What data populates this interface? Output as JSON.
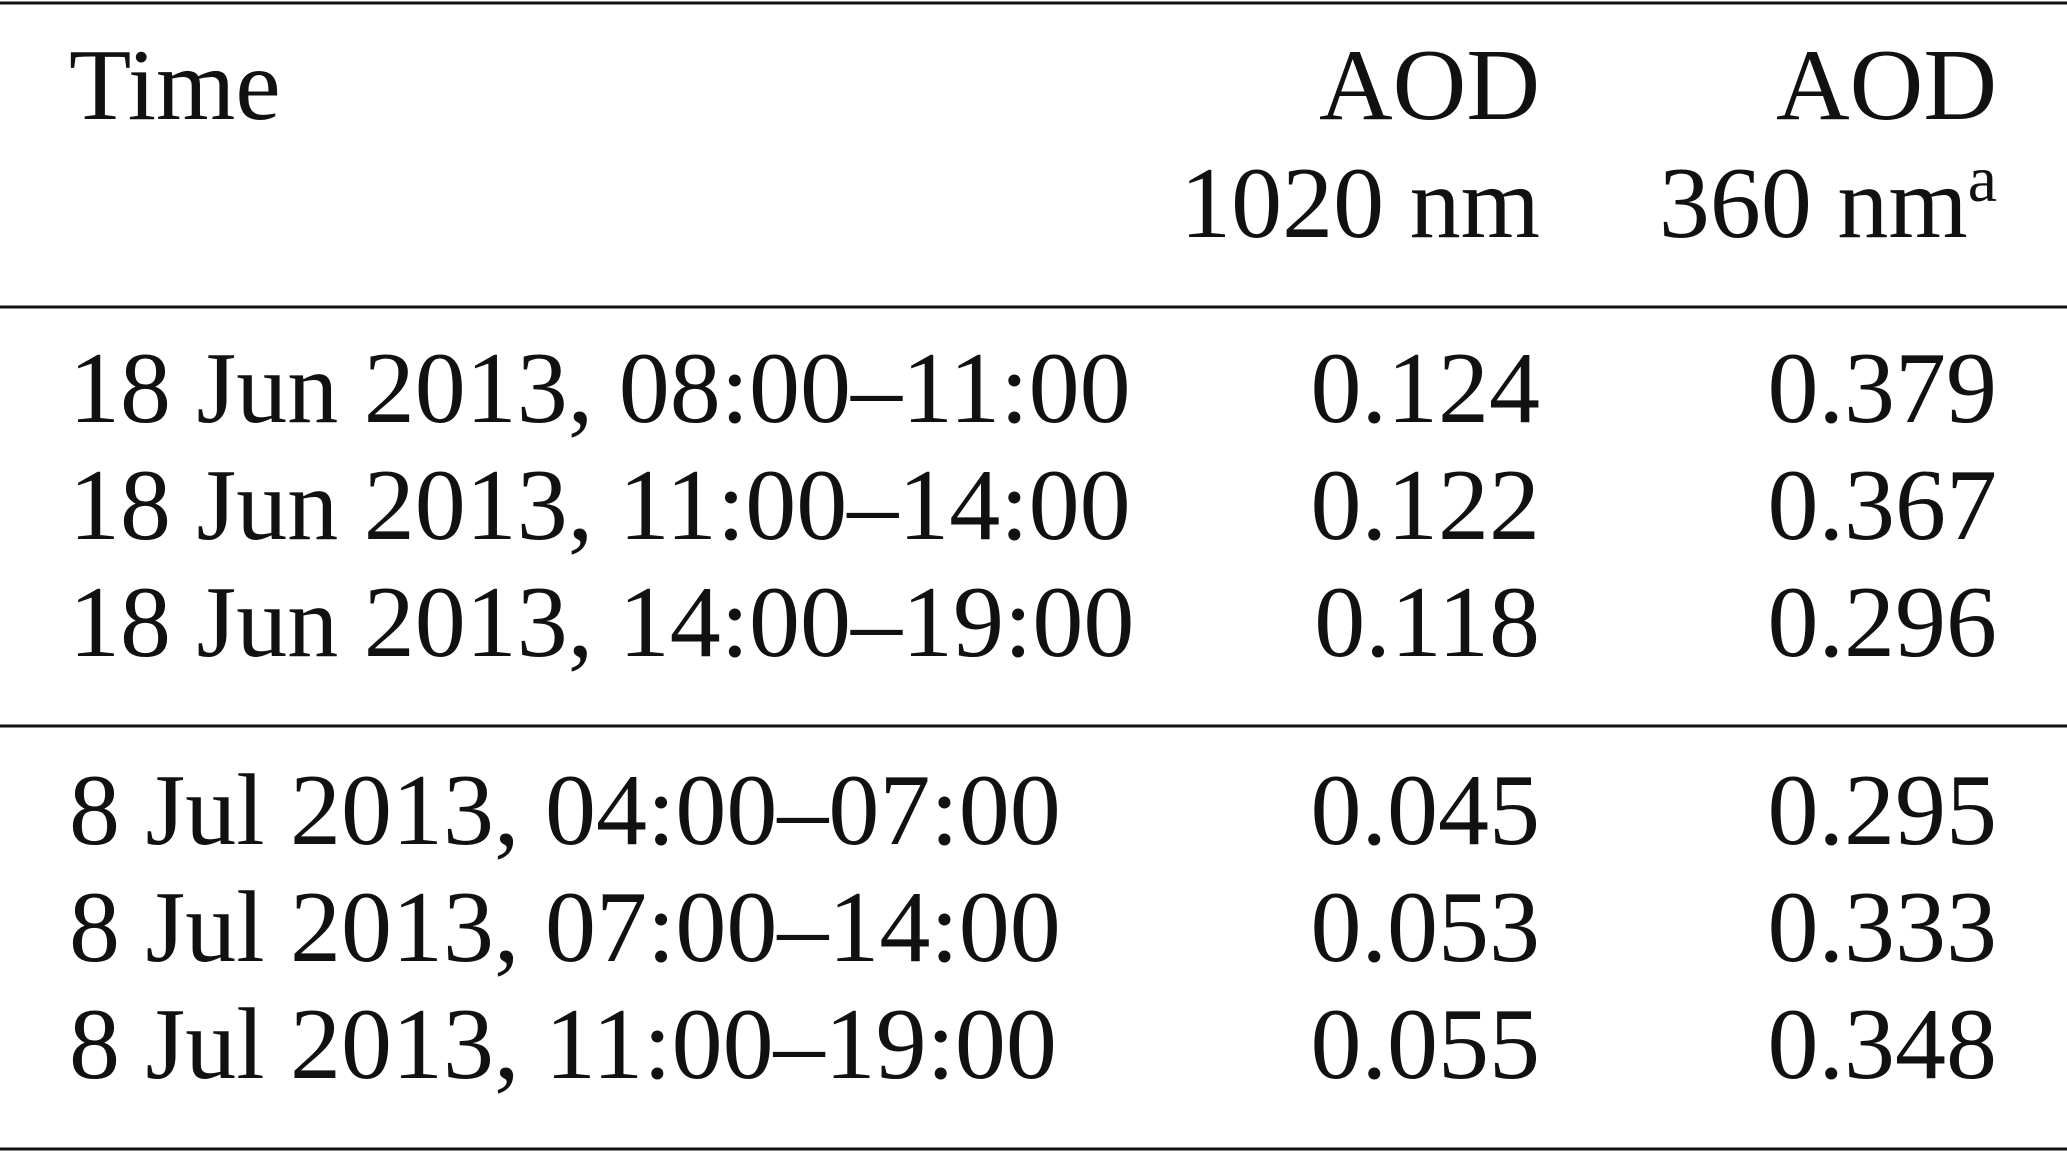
{
  "table": {
    "header": {
      "time": "Time",
      "col1": {
        "line1": "AOD",
        "line2": "1020 nm"
      },
      "col2": {
        "line1": "AOD",
        "line2": "360 nm",
        "note": "a"
      }
    },
    "groups": [
      [
        [
          "18 Jun 2013, 08:00–11:00",
          "0.124",
          "0.379"
        ],
        [
          "18 Jun 2013, 11:00–14:00",
          "0.122",
          "0.367"
        ],
        [
          "18 Jun 2013, 14:00–19:00",
          "0.118",
          "0.296"
        ]
      ],
      [
        [
          "8 Jul 2013, 04:00–07:00",
          "0.045",
          "0.295"
        ],
        [
          "8 Jul 2013, 07:00–14:00",
          "0.053",
          "0.333"
        ],
        [
          "8 Jul 2013, 11:00–19:00",
          "0.055",
          "0.348"
        ]
      ]
    ]
  }
}
